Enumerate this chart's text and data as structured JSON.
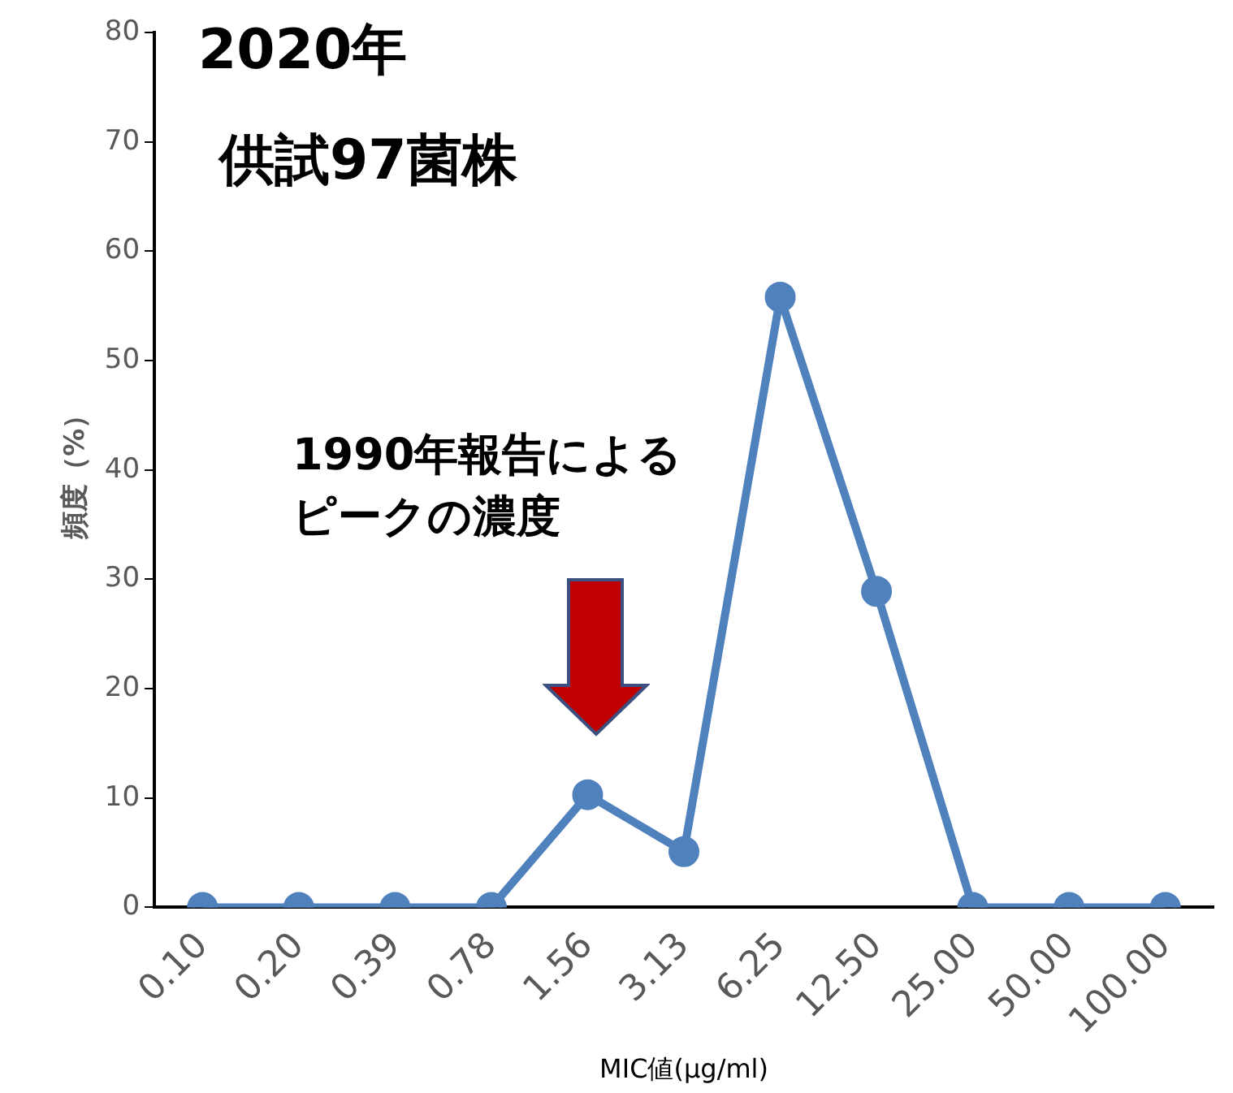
{
  "chart_data": {
    "type": "line",
    "title": "2020年",
    "subtitle": "供試97菌株",
    "xlabel": "MIC値(μg/ml)",
    "ylabel": "頻度（%）",
    "categories": [
      "0.10",
      "0.20",
      "0.39",
      "0.78",
      "1.56",
      "3.13",
      "6.25",
      "12.50",
      "25.00",
      "50.00",
      "100.00"
    ],
    "series": [
      {
        "color": "#4f81bd",
        "values": [
          0,
          0,
          0,
          0,
          10.3,
          5.1,
          55.8,
          28.9,
          0,
          0,
          0
        ]
      }
    ],
    "ylim": [
      0,
      80
    ],
    "yticks": [
      0,
      10,
      20,
      30,
      40,
      50,
      60,
      70,
      80
    ],
    "grid": false,
    "legend": false,
    "marker": "circle",
    "line_style": "solid",
    "annotations": [
      "1990年報告による",
      "ピークの濃度"
    ]
  }
}
